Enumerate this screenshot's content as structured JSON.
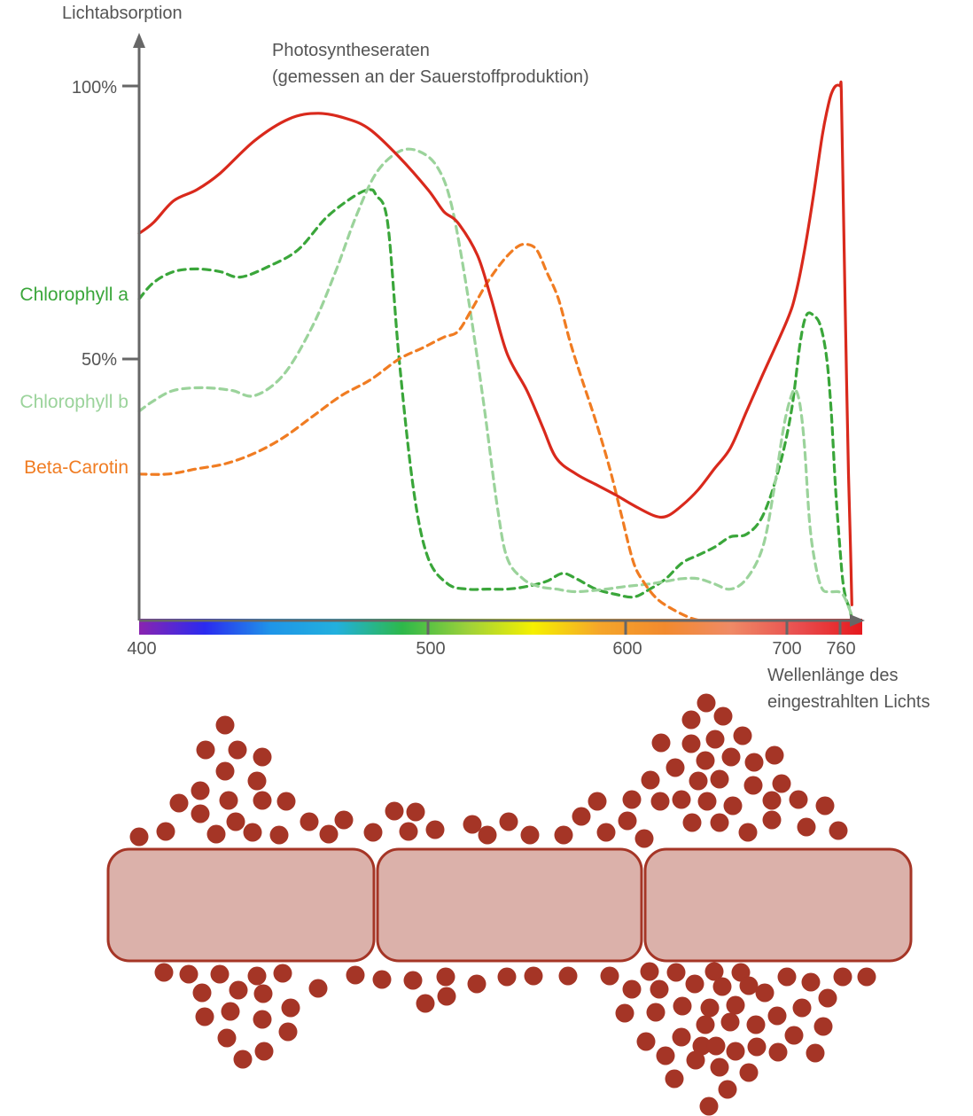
{
  "chart_data": {
    "type": "line",
    "ylabel": "Lichtabsorption",
    "xlabel_line1": "Wellenlänge des",
    "xlabel_line2": "eingestrahlten Lichts",
    "xlim": [
      400,
      760
    ],
    "ylim": [
      0,
      100
    ],
    "x_ticks": [
      {
        "value": 400,
        "label": "400"
      },
      {
        "value": 500,
        "label": "500"
      },
      {
        "value": 600,
        "label": "600"
      },
      {
        "value": 700,
        "label": "700"
      },
      {
        "value": 760,
        "label": "760"
      }
    ],
    "y_ticks": [
      {
        "value": 100,
        "label": "100%"
      },
      {
        "value": 50,
        "label": "50%"
      }
    ],
    "annotation_line1": "Photosyntheseraten",
    "annotation_line2": "(gemessen an der Sauerstoffproduktion)",
    "series": [
      {
        "name": "Photosyntheseraten",
        "color": "#d9291c",
        "style": "solid",
        "points": [
          [
            400,
            73
          ],
          [
            405,
            75
          ],
          [
            412,
            79
          ],
          [
            420,
            81
          ],
          [
            428,
            84
          ],
          [
            440,
            90
          ],
          [
            452,
            94
          ],
          [
            462,
            95
          ],
          [
            472,
            94
          ],
          [
            480,
            92
          ],
          [
            490,
            87
          ],
          [
            500,
            81
          ],
          [
            508,
            77
          ],
          [
            515,
            75
          ],
          [
            525,
            69
          ],
          [
            532,
            61
          ],
          [
            540,
            51
          ],
          [
            550,
            44
          ],
          [
            558,
            37
          ],
          [
            565,
            31
          ],
          [
            575,
            28
          ],
          [
            585,
            26
          ],
          [
            595,
            24
          ],
          [
            605,
            22
          ],
          [
            618,
            20
          ],
          [
            626,
            20
          ],
          [
            635,
            22
          ],
          [
            645,
            25
          ],
          [
            655,
            29
          ],
          [
            665,
            33
          ],
          [
            675,
            40
          ],
          [
            685,
            47
          ],
          [
            700,
            57
          ],
          [
            710,
            62
          ],
          [
            720,
            70
          ],
          [
            730,
            80
          ],
          [
            740,
            91
          ],
          [
            746,
            96
          ],
          [
            750,
            98.5
          ],
          [
            755,
            100
          ],
          [
            760,
            100
          ],
          [
            764,
            99
          ],
          [
            770,
            80
          ],
          [
            778,
            55
          ],
          [
            787,
            28
          ],
          [
            794,
            13
          ],
          [
            798,
            3
          ]
        ]
      },
      {
        "name": "Chlorophyll a",
        "color": "#3aa63a",
        "style": "dashed",
        "points": [
          [
            400,
            61
          ],
          [
            405,
            64
          ],
          [
            412,
            66
          ],
          [
            420,
            66.5
          ],
          [
            428,
            66
          ],
          [
            435,
            65
          ],
          [
            445,
            67
          ],
          [
            455,
            70
          ],
          [
            465,
            76
          ],
          [
            475,
            80
          ],
          [
            480,
            81
          ],
          [
            482,
            80
          ],
          [
            486,
            75
          ],
          [
            490,
            50
          ],
          [
            495,
            25
          ],
          [
            500,
            12
          ],
          [
            510,
            7
          ],
          [
            520,
            6
          ],
          [
            530,
            6
          ],
          [
            540,
            6
          ],
          [
            550,
            6.5
          ],
          [
            560,
            7.5
          ],
          [
            568,
            9
          ],
          [
            575,
            8
          ],
          [
            585,
            6
          ],
          [
            595,
            5
          ],
          [
            605,
            4.5
          ],
          [
            615,
            6
          ],
          [
            625,
            8
          ],
          [
            635,
            11
          ],
          [
            645,
            12.5
          ],
          [
            655,
            14
          ],
          [
            665,
            16
          ],
          [
            675,
            16.5
          ],
          [
            685,
            20
          ],
          [
            695,
            29
          ],
          [
            705,
            40
          ],
          [
            715,
            53
          ],
          [
            722,
            58
          ],
          [
            730,
            58
          ],
          [
            738,
            56
          ],
          [
            745,
            50
          ],
          [
            750,
            40
          ],
          [
            755,
            25
          ],
          [
            762,
            12
          ],
          [
            770,
            7
          ],
          [
            780,
            4
          ],
          [
            792,
            2
          ],
          [
            798,
            0
          ]
        ]
      },
      {
        "name": "Chlorophyll b",
        "color": "#9bd39b",
        "style": "dashed",
        "points": [
          [
            400,
            40
          ],
          [
            405,
            42
          ],
          [
            412,
            44
          ],
          [
            422,
            44.5
          ],
          [
            432,
            44
          ],
          [
            440,
            43
          ],
          [
            450,
            47
          ],
          [
            460,
            56
          ],
          [
            468,
            66
          ],
          [
            475,
            76
          ],
          [
            482,
            84
          ],
          [
            490,
            88
          ],
          [
            497,
            88
          ],
          [
            505,
            85
          ],
          [
            512,
            78
          ],
          [
            520,
            62
          ],
          [
            528,
            42
          ],
          [
            535,
            22
          ],
          [
            540,
            12
          ],
          [
            548,
            8
          ],
          [
            556,
            6.5
          ],
          [
            565,
            6
          ],
          [
            575,
            5.5
          ],
          [
            590,
            6
          ],
          [
            600,
            6.5
          ],
          [
            615,
            7
          ],
          [
            625,
            7.5
          ],
          [
            635,
            8
          ],
          [
            645,
            8
          ],
          [
            655,
            7
          ],
          [
            665,
            6
          ],
          [
            675,
            8
          ],
          [
            685,
            14
          ],
          [
            692,
            25
          ],
          [
            698,
            37
          ],
          [
            705,
            43
          ],
          [
            710,
            44
          ],
          [
            715,
            41
          ],
          [
            720,
            33
          ],
          [
            726,
            18
          ],
          [
            733,
            10
          ],
          [
            740,
            6
          ],
          [
            748,
            5.5
          ],
          [
            758,
            5.5
          ],
          [
            768,
            5
          ],
          [
            778,
            4
          ],
          [
            788,
            2.5
          ],
          [
            798,
            1
          ]
        ]
      },
      {
        "name": "Beta-Carotin",
        "color": "#f07c22",
        "style": "dashed",
        "points": [
          [
            400,
            28
          ],
          [
            410,
            28
          ],
          [
            420,
            29
          ],
          [
            430,
            30
          ],
          [
            440,
            32
          ],
          [
            450,
            35
          ],
          [
            460,
            39
          ],
          [
            470,
            43
          ],
          [
            480,
            46
          ],
          [
            490,
            50
          ],
          [
            498,
            52
          ],
          [
            508,
            54
          ],
          [
            515,
            55
          ],
          [
            522,
            59
          ],
          [
            530,
            64
          ],
          [
            538,
            68
          ],
          [
            545,
            70.5
          ],
          [
            550,
            71
          ],
          [
            555,
            70
          ],
          [
            560,
            66
          ],
          [
            566,
            61
          ],
          [
            572,
            53
          ],
          [
            578,
            46
          ],
          [
            585,
            38
          ],
          [
            592,
            29
          ],
          [
            598,
            20
          ],
          [
            605,
            11
          ],
          [
            612,
            7
          ],
          [
            620,
            4
          ],
          [
            630,
            2
          ],
          [
            640,
            0.5
          ],
          [
            646,
            0
          ]
        ]
      }
    ]
  },
  "legend_labels": {
    "chlorophyll_a": "Chlorophyll a",
    "chlorophyll_b": "Chlorophyll b",
    "beta_carotin": "Beta-Carotin"
  },
  "spectrum_colors": [
    "#8a24b0",
    "#2a2af0",
    "#1f95e8",
    "#22b0dd",
    "#2db84a",
    "#9ed13a",
    "#f5f000",
    "#f5a62a",
    "#f28a2e",
    "#ef8a66",
    "#e95050",
    "#e6191e"
  ],
  "colors": {
    "axis": "#676767",
    "text": "#545454",
    "dot": "#a53526",
    "membrane_fill": "#dbb1aa",
    "membrane_stroke": "#a53526"
  }
}
